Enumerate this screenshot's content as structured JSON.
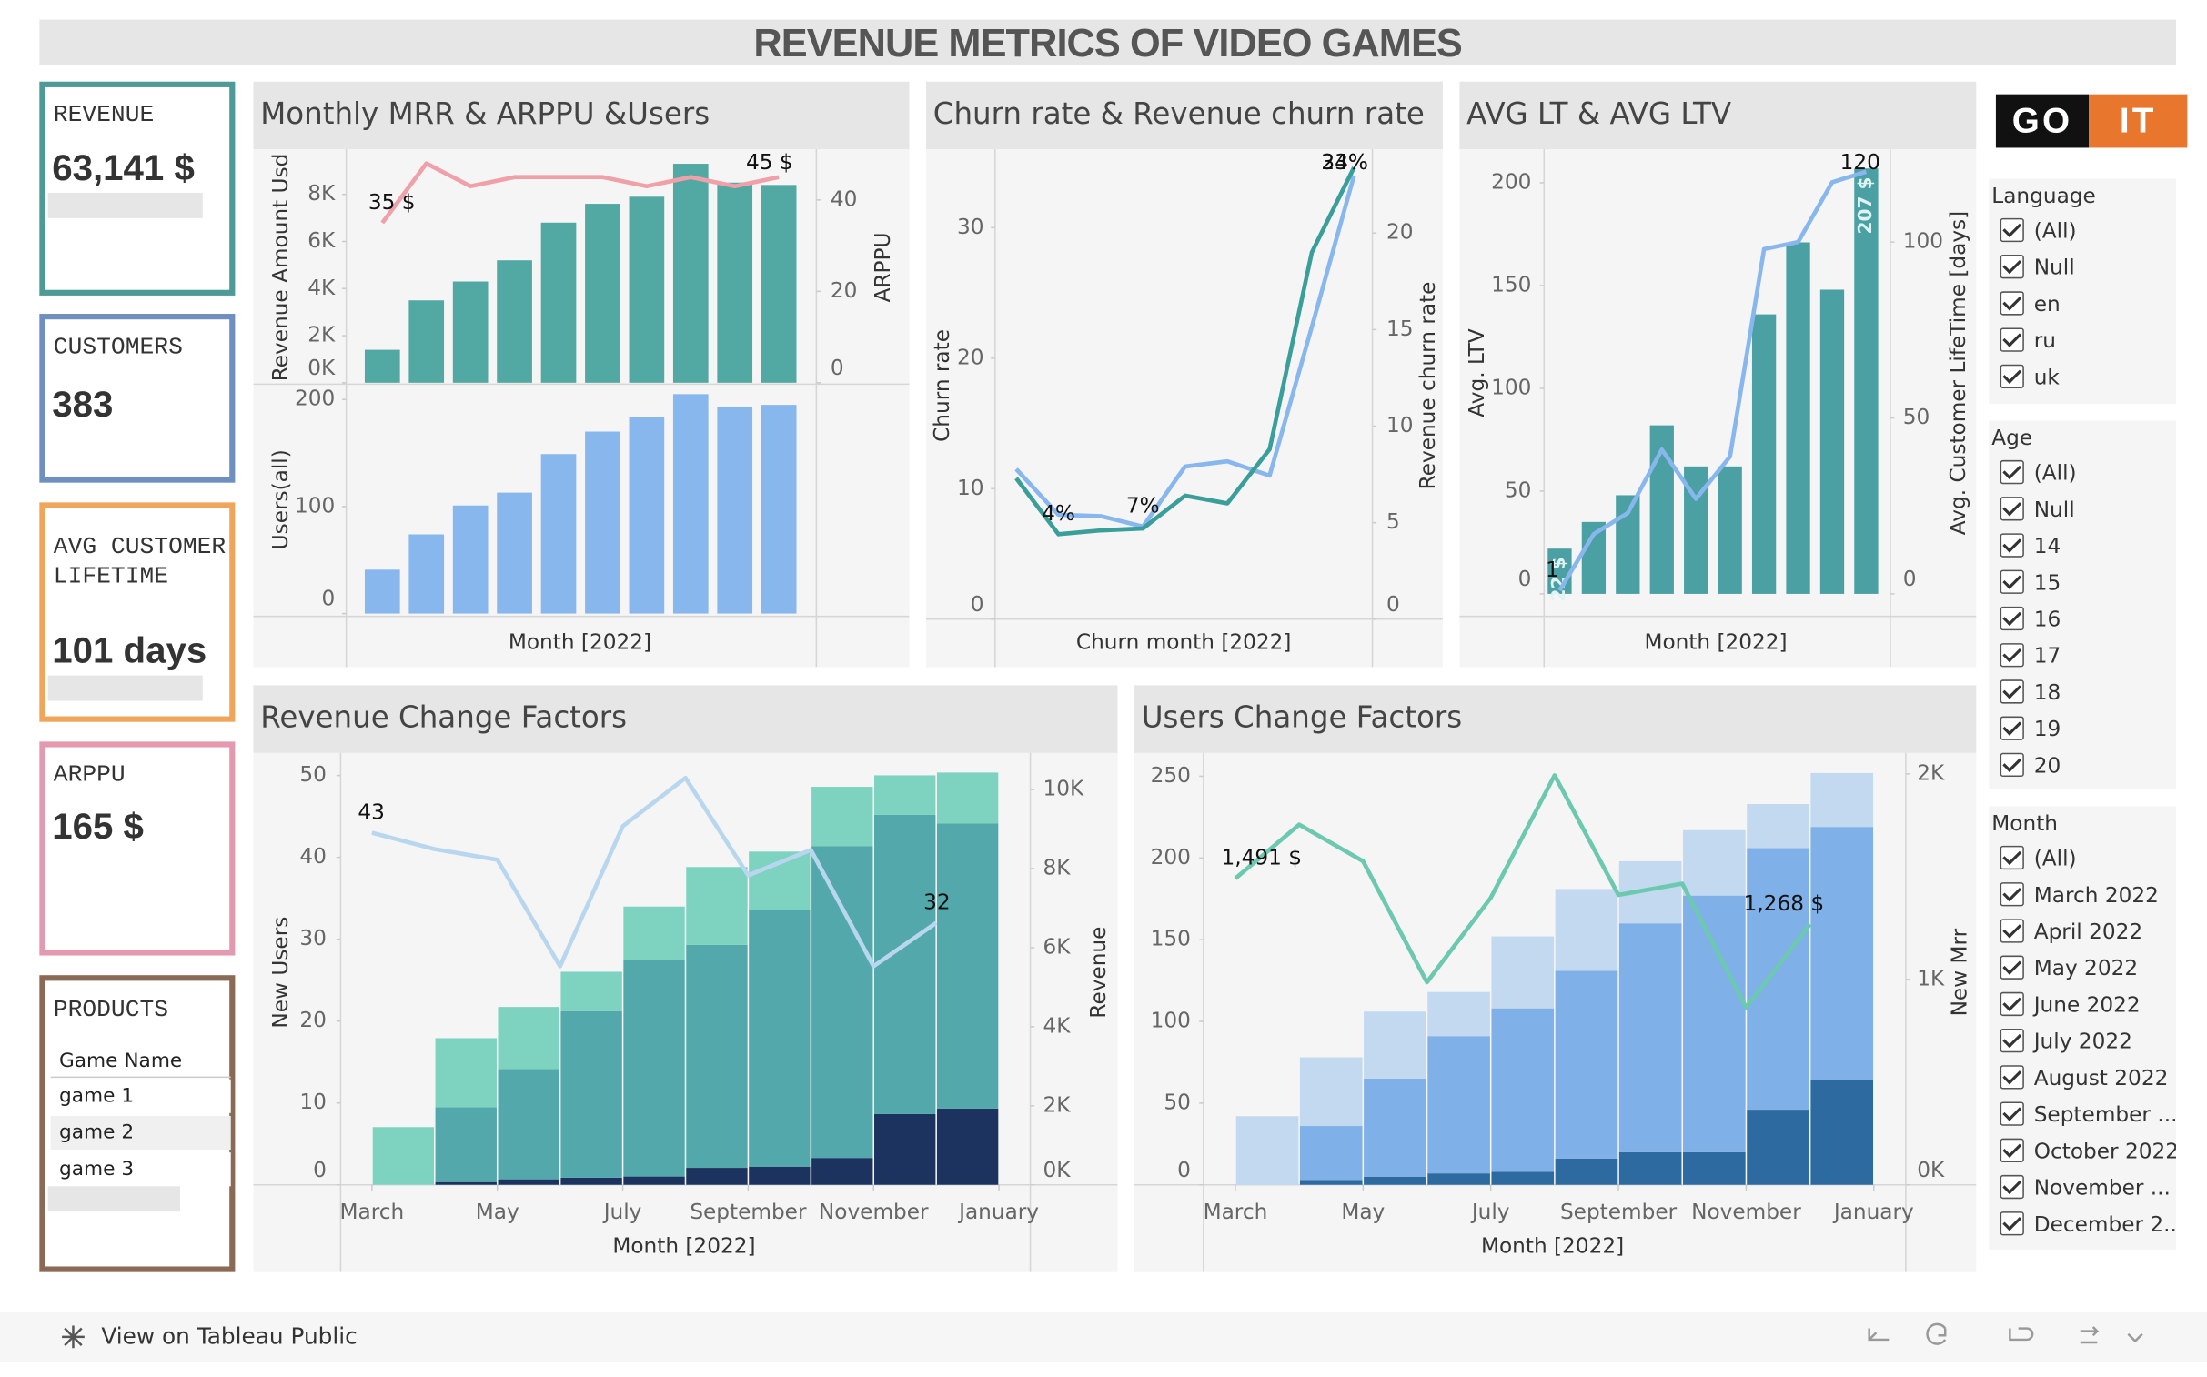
{
  "title": "REVENUE METRICS OF VIDEO GAMES",
  "kpis": [
    {
      "label": "REVENUE",
      "value": "63,141 $"
    },
    {
      "label": "CUSTOMERS",
      "value": "383"
    },
    {
      "label": "AVG CUSTOMER LIFETIME",
      "value": "101 days"
    },
    {
      "label": "ARPPU",
      "value": "165 $"
    }
  ],
  "products": {
    "label": "PRODUCTS",
    "header": "Game Name",
    "rows": [
      "game 1",
      "game 2",
      "game 3"
    ]
  },
  "logo": {
    "left": "GO",
    "right": "IT"
  },
  "filters": [
    {
      "title": "Language",
      "items": [
        "(All)",
        "Null",
        "en",
        "ru",
        "uk"
      ]
    },
    {
      "title": "Age",
      "items": [
        "(All)",
        "Null",
        "14",
        "15",
        "16",
        "17",
        "18",
        "19",
        "20"
      ]
    },
    {
      "title": "Month",
      "items": [
        "(All)",
        "March 2022",
        "April 2022",
        "May 2022",
        "June 2022",
        "July 2022",
        "August 2022",
        "September ...",
        "October 2022",
        "November ...",
        "December 2..."
      ]
    }
  ],
  "footer": "View on Tableau Public",
  "chart_data": [
    {
      "type": "combo",
      "title": "Monthly MRR & ARPPU &Users",
      "xlabel": "Month [2022]",
      "panels": [
        {
          "ylabel": "Revenue Amount Usd",
          "ylim": [
            0,
            9800
          ],
          "yticks": [
            {
              "value": 0,
              "label": "0K"
            },
            {
              "value": 2000,
              "label": "2K"
            },
            {
              "value": 4000,
              "label": "4K"
            },
            {
              "value": 6000,
              "label": "6K"
            },
            {
              "value": 8000,
              "label": "8K"
            }
          ],
          "y2label": "ARPPU",
          "y2lim": [
            0,
            50.5
          ],
          "y2ticks": [
            0,
            20,
            40
          ],
          "series": [
            {
              "kind": "bar",
              "color": "#52a9a3",
              "values": [
                1400,
                3500,
                4300,
                5200,
                6800,
                7600,
                7900,
                9300,
                8500,
                8400
              ]
            },
            {
              "kind": "line",
              "axis": "y2",
              "color": "#f0a0a8",
              "values": [
                35,
                48,
                43,
                45,
                45,
                45,
                43,
                45,
                43,
                45
              ],
              "value_labels": [
                "35 $",
                null,
                null,
                null,
                null,
                null,
                null,
                null,
                null,
                "45 $"
              ]
            }
          ]
        },
        {
          "ylabel": "Users(all)",
          "ylim": [
            0,
            213
          ],
          "yticks": [
            0,
            100,
            200
          ],
          "series": [
            {
              "kind": "bar",
              "color": "#88b7ee",
              "values": [
                41,
                74,
                101,
                113,
                149,
                170,
                184,
                205,
                193,
                195
              ]
            }
          ]
        }
      ]
    },
    {
      "type": "combo",
      "title": "Churn rate & Revenue churn rate",
      "xlabel": "Churn month [2022]",
      "panels": [
        {
          "ylabel": "Churn rate",
          "ylim": [
            0,
            35.8
          ],
          "yticks": [
            0,
            10,
            20,
            30
          ],
          "y2label": "Revenue churn rate",
          "y2lim": [
            0,
            24.2
          ],
          "y2ticks": [
            0,
            5,
            10,
            15,
            20
          ],
          "series": [
            {
              "kind": "line",
              "color": "#88b7ee",
              "values": [
                11.5,
                8.0,
                7.9,
                7.1,
                11.7,
                12.1,
                11.0,
                22.4,
                34
              ],
              "value_labels": [
                null,
                null,
                null,
                "7%",
                null,
                null,
                null,
                null,
                "34%"
              ]
            },
            {
              "kind": "line",
              "axis": "y2",
              "color": "#3a9e9a",
              "values": [
                7.3,
                4.4,
                4.6,
                4.7,
                6.4,
                6.0,
                8.8,
                19.0,
                23.4
              ],
              "value_labels": [
                null,
                "4%",
                null,
                null,
                null,
                null,
                null,
                null,
                "23%"
              ]
            }
          ]
        }
      ]
    },
    {
      "type": "combo",
      "title": "AVG LT & AVG LTV",
      "xlabel": "Month [2022]",
      "panels": [
        {
          "ylabel": "Avg. LTV",
          "ylim": [
            0,
            215
          ],
          "yticks": [
            0,
            50,
            100,
            150,
            200
          ],
          "y2label": "Avg. Customer LifeTime [days]",
          "y2lim": [
            0,
            125.6
          ],
          "y2ticks": [
            0,
            50,
            100
          ],
          "series": [
            {
              "kind": "bar",
              "color": "#4aa0a3",
              "values": [
                22,
                35,
                48,
                82,
                62,
                62,
                136,
                171,
                148,
                207
              ],
              "value_labels": [
                "22 $",
                null,
                null,
                null,
                null,
                null,
                null,
                null,
                null,
                "207 $"
              ]
            },
            {
              "kind": "line",
              "axis": "y2",
              "color": "#88b7ee",
              "values": [
                1,
                17,
                23,
                41,
                27,
                39,
                98,
                100,
                117,
                120
              ],
              "value_labels": [
                "1",
                null,
                null,
                null,
                null,
                null,
                null,
                null,
                null,
                "120"
              ]
            }
          ]
        }
      ]
    },
    {
      "type": "combo",
      "title": "Revenue Change Factors",
      "xlabel": "Month [2022]",
      "xlim": [
        -0.5,
        10.5
      ],
      "xticks": [
        {
          "value": 0,
          "label": "March"
        },
        {
          "value": 2,
          "label": "May"
        },
        {
          "value": 4,
          "label": "July"
        },
        {
          "value": 6,
          "label": "September"
        },
        {
          "value": 8,
          "label": "November"
        },
        {
          "value": 10,
          "label": "January"
        }
      ],
      "panels": [
        {
          "ylabel": "New Users",
          "ylim": [
            0,
            51.9
          ],
          "yticks": [
            0,
            10,
            20,
            30,
            40,
            50
          ],
          "y2label": "Revenue",
          "y2lim": [
            0,
            10750
          ],
          "y2ticks": [
            {
              "value": 0,
              "label": "0K"
            },
            {
              "value": 2000,
              "label": "2K"
            },
            {
              "value": 4000,
              "label": "4K"
            },
            {
              "value": 6000,
              "label": "6K"
            },
            {
              "value": 8000,
              "label": "8K"
            },
            {
              "value": 10000,
              "label": "10K"
            }
          ],
          "series": [
            {
              "kind": "stack",
              "axis": "y2",
              "color": "#1c3360",
              "values": [
                0,
                70,
                140,
                180,
                210,
                430,
                460,
                680,
                1790,
                1930
              ]
            },
            {
              "kind": "stack",
              "axis": "y2",
              "color": "#52a8aa",
              "values": [
                0,
                1890,
                2790,
                4210,
                5470,
                5640,
                6500,
                7890,
                7570,
                7210
              ]
            },
            {
              "kind": "stack",
              "axis": "y2",
              "color": "#7ed3c0",
              "values": [
                1460,
                1750,
                1570,
                1000,
                1360,
                1970,
                1470,
                1500,
                1000,
                1290
              ]
            },
            {
              "kind": "line",
              "color": "#b8d7ef",
              "values": [
                43,
                41,
                39.7,
                26.7,
                43.8,
                49.7,
                37.8,
                40.9,
                26.7,
                32
              ],
              "value_labels": [
                "43",
                null,
                null,
                null,
                null,
                null,
                null,
                null,
                null,
                "32"
              ]
            }
          ]
        }
      ]
    },
    {
      "type": "combo",
      "title": "Users Change Factors",
      "xlabel": "Month [2022]",
      "xlim": [
        -0.5,
        10.5
      ],
      "xticks": [
        {
          "value": 0,
          "label": "March"
        },
        {
          "value": 2,
          "label": "May"
        },
        {
          "value": 4,
          "label": "July"
        },
        {
          "value": 6,
          "label": "September"
        },
        {
          "value": 8,
          "label": "November"
        },
        {
          "value": 10,
          "label": "January"
        }
      ],
      "panels": [
        {
          "ylim": [
            0,
            260
          ],
          "yticks": [
            0,
            50,
            100,
            150,
            200,
            250
          ],
          "y2label": "New Mrr",
          "y2lim": [
            0,
            2068
          ],
          "y2ticks": [
            {
              "value": 0,
              "label": "0K"
            },
            {
              "value": 1000,
              "label": "1K"
            },
            {
              "value": 2000,
              "label": "2K"
            }
          ],
          "series": [
            {
              "kind": "stack",
              "color": "#2c6aa0",
              "values": [
                0,
                3,
                5,
                7,
                8,
                16,
                20,
                20,
                46,
                64
              ]
            },
            {
              "kind": "stack",
              "color": "#7fb0e8",
              "values": [
                0,
                33,
                60,
                84,
                100,
                115,
                140,
                157,
                160,
                155
              ]
            },
            {
              "kind": "stack",
              "color": "#c2d9f0",
              "values": [
                42,
                42,
                41,
                27,
                44,
                50,
                38,
                40,
                27,
                33
              ]
            },
            {
              "kind": "line",
              "axis": "y2",
              "color": "#6cc9b0",
              "values": [
                1491,
                1753,
                1575,
                986,
                1397,
                1993,
                1411,
                1466,
                863,
                1268
              ],
              "value_labels": [
                "1,491 $",
                null,
                null,
                null,
                null,
                null,
                null,
                null,
                null,
                "1,268 $"
              ]
            }
          ]
        }
      ]
    }
  ]
}
